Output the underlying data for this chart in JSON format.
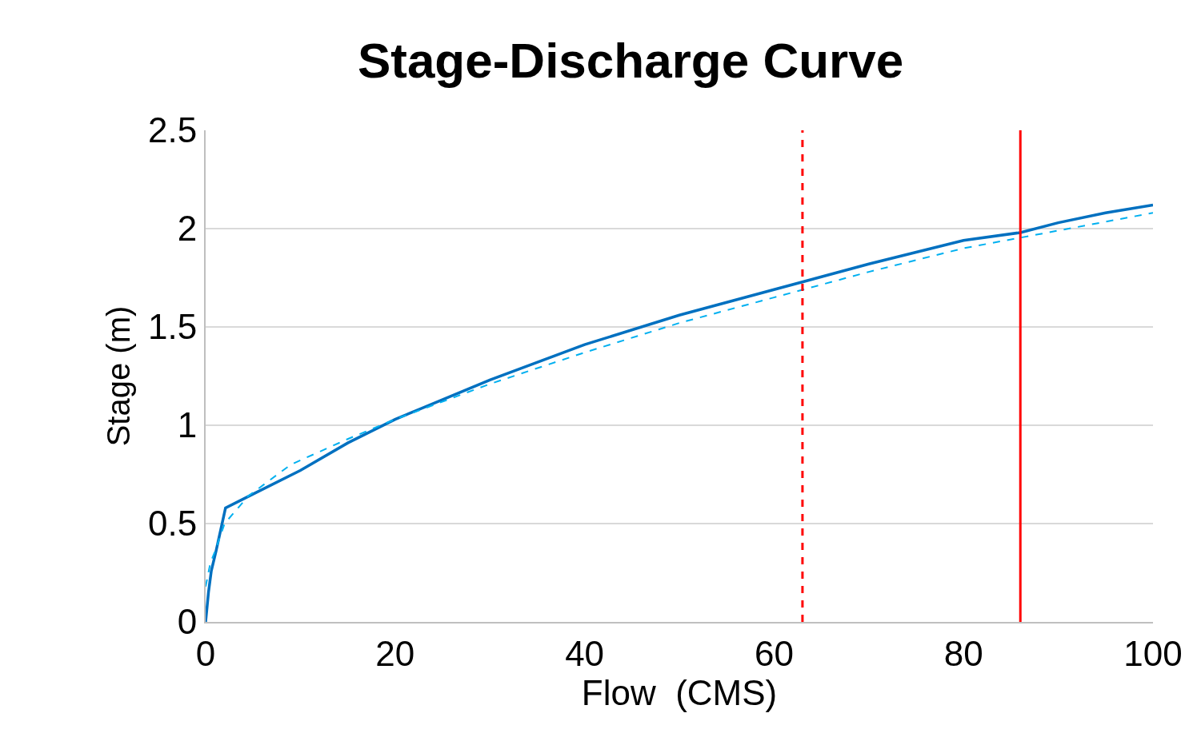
{
  "chart_data": {
    "type": "line",
    "title": "Stage-Discharge Curve",
    "xlabel": "Flow  (CMS)",
    "ylabel": "Stage (m)",
    "xlim": [
      0,
      100
    ],
    "xticks": [
      0,
      20,
      40,
      60,
      80,
      100
    ],
    "ylim": [
      0,
      2.5
    ],
    "yticks": [
      0,
      0.5,
      1,
      1.5,
      2,
      2.5
    ],
    "grid": "y",
    "series": [
      {
        "color": "#0070c0",
        "line_style": "solid",
        "x": [
          0,
          0.3,
          0.6,
          1.1,
          1.6,
          2.1,
          5,
          10,
          15,
          20,
          30,
          40,
          50,
          60,
          70,
          80,
          86,
          90,
          95,
          100
        ],
        "values": [
          0,
          0.15,
          0.26,
          0.36,
          0.47,
          0.58,
          0.65,
          0.77,
          0.91,
          1.03,
          1.23,
          1.41,
          1.56,
          1.69,
          1.82,
          1.94,
          1.98,
          2.03,
          2.08,
          2.12
        ]
      },
      {
        "color": "#00b0f0",
        "line_style": "dashed",
        "x": [
          0,
          0.5,
          1,
          2,
          4.5,
          9,
          15,
          20,
          30,
          40,
          50,
          60,
          70,
          80,
          90,
          100
        ],
        "values": [
          0.18,
          0.3,
          0.36,
          0.5,
          0.64,
          0.8,
          0.93,
          1.03,
          1.21,
          1.37,
          1.52,
          1.65,
          1.78,
          1.9,
          1.99,
          2.08
        ]
      }
    ],
    "ref_lines": [
      {
        "axis": "x",
        "value": 63,
        "color": "#ff0000",
        "line_style": "dashed"
      },
      {
        "axis": "x",
        "value": 86,
        "color": "#ff0000",
        "line_style": "solid"
      }
    ]
  }
}
